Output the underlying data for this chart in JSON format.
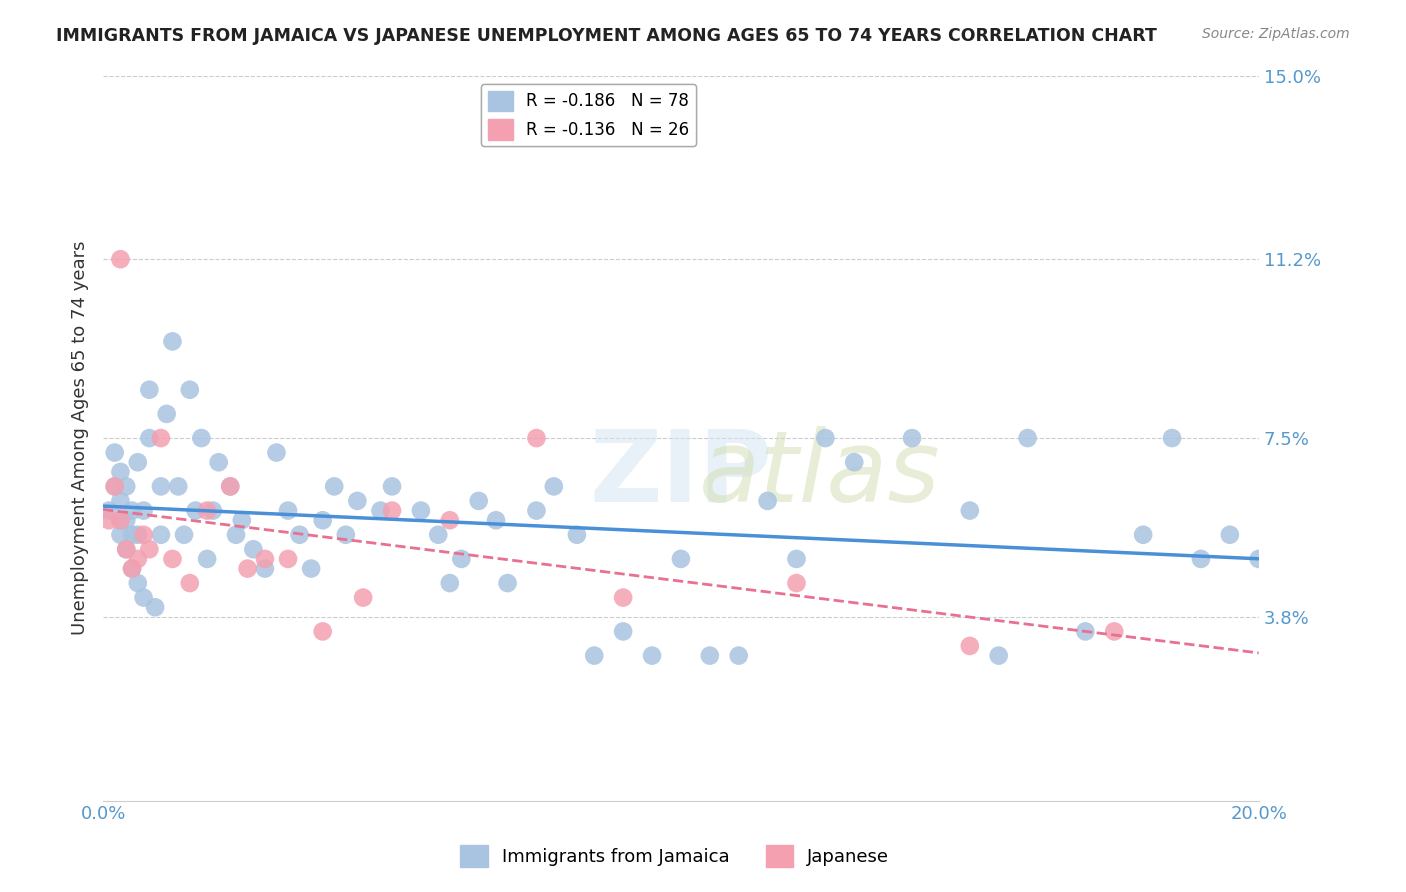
{
  "title": "IMMIGRANTS FROM JAMAICA VS JAPANESE UNEMPLOYMENT AMONG AGES 65 TO 74 YEARS CORRELATION CHART",
  "source": "Source: ZipAtlas.com",
  "xlabel": "",
  "ylabel": "Unemployment Among Ages 65 to 74 years",
  "xlim": [
    0.0,
    0.2
  ],
  "ylim": [
    0.0,
    0.15
  ],
  "yticks": [
    0.038,
    0.075,
    0.112,
    0.15
  ],
  "ytick_labels": [
    "3.8%",
    "7.5%",
    "11.2%",
    "15.0%"
  ],
  "xticks": [
    0.0,
    0.04,
    0.08,
    0.12,
    0.16,
    0.2
  ],
  "xtick_labels": [
    "0.0%",
    "",
    "",
    "",
    "",
    "20.0%"
  ],
  "legend_items": [
    {
      "label": "R = -0.186   N = 78",
      "color": "#a8c4e0"
    },
    {
      "label": "R = -0.136   N = 26",
      "color": "#f4a0b0"
    }
  ],
  "legend_label1": "Immigrants from Jamaica",
  "legend_label2": "Japanese",
  "blue_color": "#a8c4e0",
  "pink_color": "#f4a0b0",
  "line_blue": "#4a90d9",
  "line_pink": "#e87090",
  "title_color": "#222222",
  "axis_color": "#5599cc",
  "watermark": "ZIPatlas",
  "blue_R": -0.186,
  "blue_N": 78,
  "pink_R": -0.136,
  "pink_N": 26,
  "blue_points_x": [
    0.001,
    0.002,
    0.002,
    0.003,
    0.003,
    0.003,
    0.003,
    0.004,
    0.004,
    0.004,
    0.005,
    0.005,
    0.005,
    0.006,
    0.006,
    0.006,
    0.007,
    0.007,
    0.008,
    0.008,
    0.009,
    0.01,
    0.01,
    0.011,
    0.012,
    0.013,
    0.014,
    0.015,
    0.016,
    0.017,
    0.018,
    0.019,
    0.02,
    0.022,
    0.023,
    0.024,
    0.026,
    0.028,
    0.03,
    0.032,
    0.034,
    0.036,
    0.038,
    0.04,
    0.042,
    0.044,
    0.048,
    0.05,
    0.055,
    0.058,
    0.06,
    0.062,
    0.065,
    0.068,
    0.07,
    0.075,
    0.078,
    0.082,
    0.085,
    0.09,
    0.095,
    0.1,
    0.105,
    0.11,
    0.115,
    0.12,
    0.125,
    0.13,
    0.14,
    0.15,
    0.155,
    0.16,
    0.17,
    0.18,
    0.185,
    0.19,
    0.195,
    0.2
  ],
  "blue_points_y": [
    0.06,
    0.065,
    0.072,
    0.055,
    0.058,
    0.062,
    0.068,
    0.052,
    0.058,
    0.065,
    0.048,
    0.055,
    0.06,
    0.045,
    0.055,
    0.07,
    0.042,
    0.06,
    0.075,
    0.085,
    0.04,
    0.055,
    0.065,
    0.08,
    0.095,
    0.065,
    0.055,
    0.085,
    0.06,
    0.075,
    0.05,
    0.06,
    0.07,
    0.065,
    0.055,
    0.058,
    0.052,
    0.048,
    0.072,
    0.06,
    0.055,
    0.048,
    0.058,
    0.065,
    0.055,
    0.062,
    0.06,
    0.065,
    0.06,
    0.055,
    0.045,
    0.05,
    0.062,
    0.058,
    0.045,
    0.06,
    0.065,
    0.055,
    0.03,
    0.035,
    0.03,
    0.05,
    0.03,
    0.03,
    0.062,
    0.05,
    0.075,
    0.07,
    0.075,
    0.06,
    0.03,
    0.075,
    0.035,
    0.055,
    0.075,
    0.05,
    0.055,
    0.05
  ],
  "pink_points_x": [
    0.001,
    0.002,
    0.003,
    0.003,
    0.004,
    0.005,
    0.006,
    0.007,
    0.008,
    0.01,
    0.012,
    0.015,
    0.018,
    0.022,
    0.025,
    0.028,
    0.032,
    0.038,
    0.045,
    0.05,
    0.06,
    0.075,
    0.09,
    0.12,
    0.15,
    0.175
  ],
  "pink_points_y": [
    0.058,
    0.065,
    0.112,
    0.058,
    0.052,
    0.048,
    0.05,
    0.055,
    0.052,
    0.075,
    0.05,
    0.045,
    0.06,
    0.065,
    0.048,
    0.05,
    0.05,
    0.035,
    0.042,
    0.06,
    0.058,
    0.075,
    0.042,
    0.045,
    0.032,
    0.035
  ]
}
